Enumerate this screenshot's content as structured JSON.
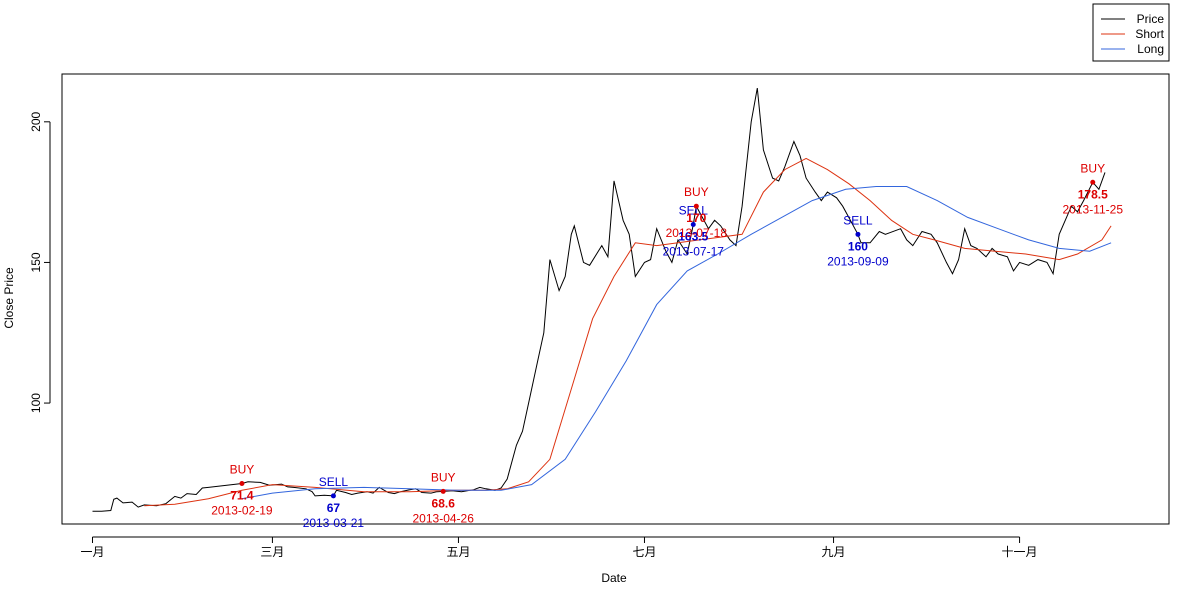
{
  "chart_data": {
    "type": "line",
    "xlabel": "Date",
    "ylabel": "Close Price",
    "x_ticks": [
      {
        "date": "2013-01-01",
        "label": "一月"
      },
      {
        "date": "2013-03-01",
        "label": "三月"
      },
      {
        "date": "2013-05-01",
        "label": "五月"
      },
      {
        "date": "2013-07-01",
        "label": "七月"
      },
      {
        "date": "2013-09-01",
        "label": "九月"
      },
      {
        "date": "2013-11-01",
        "label": "十一月"
      }
    ],
    "y_ticks": [
      100,
      150,
      200
    ],
    "xlim": [
      "2012-12-22",
      "2013-12-20"
    ],
    "ylim": [
      57,
      217
    ],
    "legend": {
      "position": "top-right",
      "entries": [
        {
          "name": "Price",
          "color": "#000000"
        },
        {
          "name": "Short",
          "color": "#dd3311"
        },
        {
          "name": "Long",
          "color": "#3366dd"
        }
      ]
    },
    "series": [
      {
        "name": "Price",
        "color": "#000000",
        "points": [
          [
            "2013-01-01",
            61.5
          ],
          [
            "2013-01-04",
            61.5
          ],
          [
            "2013-01-07",
            61.8
          ],
          [
            "2013-01-08",
            65.8
          ],
          [
            "2013-01-09",
            66.2
          ],
          [
            "2013-01-11",
            64.5
          ],
          [
            "2013-01-14",
            64.8
          ],
          [
            "2013-01-16",
            63
          ],
          [
            "2013-01-18",
            63.8
          ],
          [
            "2013-01-22",
            63.5
          ],
          [
            "2013-01-25",
            64.2
          ],
          [
            "2013-01-28",
            66.8
          ],
          [
            "2013-01-30",
            66.2
          ],
          [
            "2013-02-01",
            67.8
          ],
          [
            "2013-02-04",
            67.5
          ],
          [
            "2013-02-06",
            69.8
          ],
          [
            "2013-02-08",
            70
          ],
          [
            "2013-02-19",
            71.4
          ],
          [
            "2013-02-21",
            72
          ],
          [
            "2013-02-25",
            71.8
          ],
          [
            "2013-02-28",
            70.8
          ],
          [
            "2013-03-04",
            71.2
          ],
          [
            "2013-03-06",
            70.2
          ],
          [
            "2013-03-08",
            70
          ],
          [
            "2013-03-12",
            69.5
          ],
          [
            "2013-03-14",
            68.5
          ],
          [
            "2013-03-15",
            67
          ],
          [
            "2013-03-18",
            67.2
          ],
          [
            "2013-03-21",
            67
          ],
          [
            "2013-03-22",
            69
          ],
          [
            "2013-03-25",
            68.2
          ],
          [
            "2013-03-27",
            67.5
          ],
          [
            "2013-03-29",
            68
          ],
          [
            "2013-04-01",
            68.5
          ],
          [
            "2013-04-03",
            68
          ],
          [
            "2013-04-05",
            70
          ],
          [
            "2013-04-08",
            68.2
          ],
          [
            "2013-04-10",
            67.8
          ],
          [
            "2013-04-12",
            68.5
          ],
          [
            "2013-04-15",
            69.2
          ],
          [
            "2013-04-17",
            69.5
          ],
          [
            "2013-04-19",
            68.2
          ],
          [
            "2013-04-22",
            68
          ],
          [
            "2013-04-24",
            68.5
          ],
          [
            "2013-04-26",
            68.6
          ],
          [
            "2013-04-29",
            68.8
          ],
          [
            "2013-05-02",
            68.5
          ],
          [
            "2013-05-06",
            69.2
          ],
          [
            "2013-05-08",
            70
          ],
          [
            "2013-05-10",
            69.5
          ],
          [
            "2013-05-13",
            69
          ],
          [
            "2013-05-15",
            69.8
          ],
          [
            "2013-05-17",
            73
          ],
          [
            "2013-05-20",
            85
          ],
          [
            "2013-05-22",
            90
          ],
          [
            "2013-05-24",
            100
          ],
          [
            "2013-05-27",
            115
          ],
          [
            "2013-05-29",
            125
          ],
          [
            "2013-05-31",
            151
          ],
          [
            "2013-06-03",
            140
          ],
          [
            "2013-06-05",
            145
          ],
          [
            "2013-06-07",
            160
          ],
          [
            "2013-06-08",
            163
          ],
          [
            "2013-06-11",
            150
          ],
          [
            "2013-06-13",
            149
          ],
          [
            "2013-06-17",
            156
          ],
          [
            "2013-06-19",
            152
          ],
          [
            "2013-06-21",
            179
          ],
          [
            "2013-06-24",
            165
          ],
          [
            "2013-06-26",
            160
          ],
          [
            "2013-06-28",
            145
          ],
          [
            "2013-07-01",
            150
          ],
          [
            "2013-07-03",
            151
          ],
          [
            "2013-07-05",
            162
          ],
          [
            "2013-07-08",
            154
          ],
          [
            "2013-07-10",
            150
          ],
          [
            "2013-07-12",
            158
          ],
          [
            "2013-07-15",
            153
          ],
          [
            "2013-07-17",
            163.5
          ],
          [
            "2013-07-18",
            170
          ],
          [
            "2013-07-22",
            162
          ],
          [
            "2013-07-24",
            165
          ],
          [
            "2013-07-26",
            163
          ],
          [
            "2013-07-29",
            158
          ],
          [
            "2013-07-31",
            156
          ],
          [
            "2013-08-02",
            170
          ],
          [
            "2013-08-05",
            200
          ],
          [
            "2013-08-07",
            212
          ],
          [
            "2013-08-09",
            190
          ],
          [
            "2013-08-12",
            180
          ],
          [
            "2013-08-14",
            179
          ],
          [
            "2013-08-16",
            184
          ],
          [
            "2013-08-19",
            193
          ],
          [
            "2013-08-21",
            188
          ],
          [
            "2013-08-23",
            180
          ],
          [
            "2013-08-26",
            175
          ],
          [
            "2013-08-28",
            172
          ],
          [
            "2013-08-30",
            175
          ],
          [
            "2013-09-02",
            173
          ],
          [
            "2013-09-04",
            170
          ],
          [
            "2013-09-06",
            166
          ],
          [
            "2013-09-09",
            160
          ],
          [
            "2013-09-10",
            157
          ],
          [
            "2013-09-13",
            157
          ],
          [
            "2013-09-16",
            161
          ],
          [
            "2013-09-18",
            160
          ],
          [
            "2013-09-23",
            162
          ],
          [
            "2013-09-25",
            158
          ],
          [
            "2013-09-27",
            156
          ],
          [
            "2013-09-30",
            161
          ],
          [
            "2013-10-03",
            160
          ],
          [
            "2013-10-05",
            157
          ],
          [
            "2013-10-08",
            150
          ],
          [
            "2013-10-10",
            146
          ],
          [
            "2013-10-12",
            151
          ],
          [
            "2013-10-14",
            162
          ],
          [
            "2013-10-16",
            156
          ],
          [
            "2013-10-18",
            155
          ],
          [
            "2013-10-21",
            152
          ],
          [
            "2013-10-23",
            155
          ],
          [
            "2013-10-25",
            153
          ],
          [
            "2013-10-28",
            152
          ],
          [
            "2013-10-30",
            147
          ],
          [
            "2013-11-01",
            150
          ],
          [
            "2013-11-04",
            149
          ],
          [
            "2013-11-07",
            151
          ],
          [
            "2013-11-10",
            150
          ],
          [
            "2013-11-12",
            146
          ],
          [
            "2013-11-14",
            160
          ],
          [
            "2013-11-18",
            170
          ],
          [
            "2013-11-20",
            168
          ],
          [
            "2013-11-22",
            172
          ],
          [
            "2013-11-25",
            178.5
          ],
          [
            "2013-11-27",
            176
          ],
          [
            "2013-11-29",
            182
          ]
        ]
      },
      {
        "name": "Short",
        "color": "#dd3311",
        "points": [
          [
            "2013-01-18",
            63.5
          ],
          [
            "2013-01-28",
            64
          ],
          [
            "2013-02-08",
            66
          ],
          [
            "2013-02-19",
            69
          ],
          [
            "2013-03-01",
            71
          ],
          [
            "2013-03-15",
            70
          ],
          [
            "2013-03-31",
            68.5
          ],
          [
            "2013-04-15",
            68.5
          ],
          [
            "2013-04-30",
            69
          ],
          [
            "2013-05-10",
            69
          ],
          [
            "2013-05-17",
            69.5
          ],
          [
            "2013-05-24",
            72
          ],
          [
            "2013-05-31",
            80
          ],
          [
            "2013-06-07",
            105
          ],
          [
            "2013-06-14",
            130
          ],
          [
            "2013-06-21",
            145
          ],
          [
            "2013-06-28",
            157
          ],
          [
            "2013-07-05",
            156
          ],
          [
            "2013-07-12",
            157
          ],
          [
            "2013-07-19",
            158
          ],
          [
            "2013-07-26",
            159
          ],
          [
            "2013-08-02",
            160
          ],
          [
            "2013-08-09",
            175
          ],
          [
            "2013-08-16",
            183
          ],
          [
            "2013-08-23",
            187
          ],
          [
            "2013-08-30",
            183
          ],
          [
            "2013-09-06",
            178
          ],
          [
            "2013-09-13",
            172
          ],
          [
            "2013-09-20",
            165
          ],
          [
            "2013-09-27",
            160
          ],
          [
            "2013-10-04",
            158
          ],
          [
            "2013-10-14",
            155
          ],
          [
            "2013-10-24",
            154
          ],
          [
            "2013-11-03",
            153
          ],
          [
            "2013-11-14",
            151
          ],
          [
            "2013-11-20",
            153
          ],
          [
            "2013-11-28",
            158
          ],
          [
            "2013-12-01",
            163
          ]
        ]
      },
      {
        "name": "Long",
        "color": "#3366dd",
        "points": [
          [
            "2013-02-19",
            66
          ],
          [
            "2013-03-01",
            68
          ],
          [
            "2013-03-15",
            69.5
          ],
          [
            "2013-03-31",
            70
          ],
          [
            "2013-04-15",
            69.5
          ],
          [
            "2013-04-30",
            69
          ],
          [
            "2013-05-15",
            69
          ],
          [
            "2013-05-25",
            71
          ],
          [
            "2013-06-05",
            80
          ],
          [
            "2013-06-15",
            97
          ],
          [
            "2013-06-25",
            115
          ],
          [
            "2013-07-05",
            135
          ],
          [
            "2013-07-15",
            147
          ],
          [
            "2013-07-25",
            153
          ],
          [
            "2013-08-05",
            160
          ],
          [
            "2013-08-15",
            166
          ],
          [
            "2013-08-25",
            172
          ],
          [
            "2013-09-05",
            176
          ],
          [
            "2013-09-15",
            177
          ],
          [
            "2013-09-25",
            177
          ],
          [
            "2013-10-05",
            172
          ],
          [
            "2013-10-15",
            166
          ],
          [
            "2013-10-25",
            162
          ],
          [
            "2013-11-04",
            158
          ],
          [
            "2013-11-14",
            155
          ],
          [
            "2013-11-24",
            154
          ],
          [
            "2013-12-01",
            157
          ]
        ]
      }
    ],
    "annotations": [
      {
        "type": "BUY",
        "date": "2013-02-19",
        "price": "71.4",
        "color": "#dd0000",
        "label_side": "below"
      },
      {
        "type": "SELL",
        "date": "2013-03-21",
        "price": "67",
        "color": "#0000cc",
        "label_side": "below"
      },
      {
        "type": "BUY",
        "date": "2013-04-26",
        "price": "68.6",
        "color": "#dd0000",
        "label_side": "below"
      },
      {
        "type": "SELL",
        "date": "2013-07-17",
        "price": "163.5",
        "color": "#0000cc",
        "label_side": "below"
      },
      {
        "type": "BUY",
        "date": "2013-07-18",
        "price": "170",
        "color": "#dd0000",
        "label_side": "below"
      },
      {
        "type": "SELL",
        "date": "2013-09-09",
        "price": "160",
        "color": "#0000cc",
        "label_side": "below"
      },
      {
        "type": "BUY",
        "date": "2013-11-25",
        "price": "178.5",
        "color": "#dd0000",
        "label_side": "below"
      }
    ]
  }
}
